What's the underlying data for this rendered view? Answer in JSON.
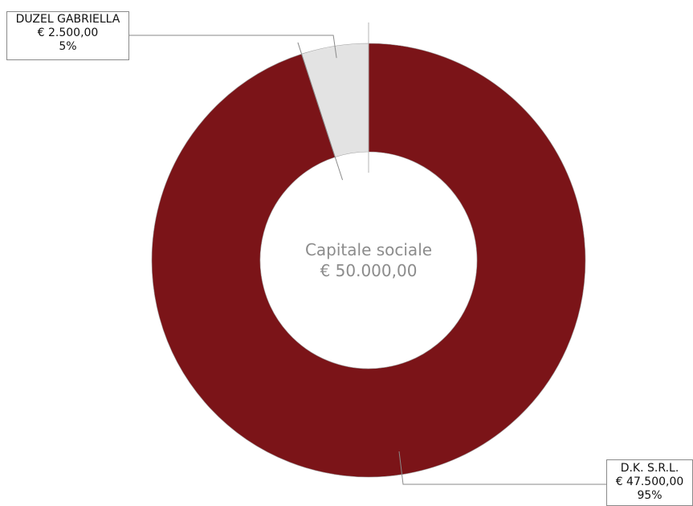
{
  "chart_data": {
    "type": "pie",
    "variant": "donut",
    "center_label": {
      "title": "Capitale sociale",
      "value": "€ 50.000,00"
    },
    "slices": [
      {
        "name": "DUZEL GABRIELLA",
        "value": 2500,
        "value_label": "€ 2.500,00",
        "percent": 5,
        "percent_label": "5%",
        "color": "#e3e3e3",
        "label_position": "top-left"
      },
      {
        "name": "D.K. S.R.L.",
        "value": 47500,
        "value_label": "€ 47.500,00",
        "percent": 95,
        "percent_label": "95%",
        "color": "#7b1418",
        "label_position": "bottom-right"
      }
    ],
    "legend": "none"
  },
  "colors": {
    "background": "#ffffff",
    "center_text": "#8c8c8c",
    "leader_line": "#8a8a8a"
  }
}
